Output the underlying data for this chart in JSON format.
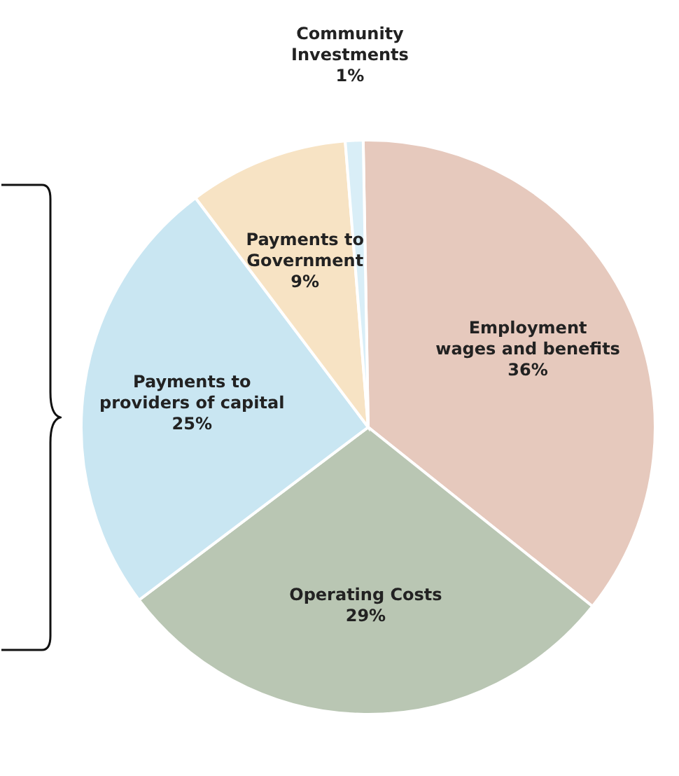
{
  "chart_data": {
    "type": "pie",
    "categories": [
      "Employment wages and benefits",
      "Operating Costs",
      "Payments to providers of capital",
      "Payments to Government",
      "Community Investments"
    ],
    "values": [
      36,
      29,
      25,
      9,
      1
    ],
    "colors": [
      "#e6c9bd",
      "#b9c6b3",
      "#c9e6f2",
      "#f7e3c4",
      "#d9eef7"
    ],
    "value_labels": [
      "36%",
      "29%",
      "25%",
      "9%",
      "1%"
    ],
    "legend": false
  }
}
